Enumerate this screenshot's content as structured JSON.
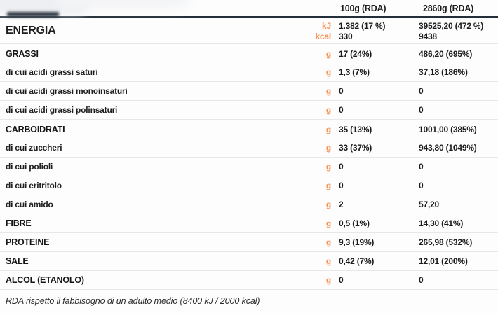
{
  "table": {
    "columns": {
      "per_100g": "100g (RDA)",
      "per_2860g": "2860g (RDA)"
    },
    "energy": {
      "label": "ENERGIA",
      "lines": [
        {
          "unit": "kJ",
          "per_100g": "1.382 (17 %)",
          "per_2860g": "39525,20 (472 %)"
        },
        {
          "unit": "kcal",
          "per_100g": "330",
          "per_2860g": "9438"
        }
      ]
    },
    "rows": [
      {
        "type": "group",
        "label": "GRASSI",
        "unit": "g",
        "per_100g": "17 (24%)",
        "per_2860g": "486,20 (695%)"
      },
      {
        "type": "sub",
        "label": "di cui acidi grassi saturi",
        "unit": "g",
        "per_100g": "1,3 (7%)",
        "per_2860g": "37,18  (186%)"
      },
      {
        "type": "sub",
        "label": "di cui acidi grassi monoinsaturi",
        "unit": "g",
        "per_100g": "0",
        "per_2860g": "0"
      },
      {
        "type": "sub",
        "label": "di cui acidi grassi polinsaturi",
        "unit": "g",
        "per_100g": "0",
        "per_2860g": "0"
      },
      {
        "type": "group",
        "label": "CARBOIDRATI",
        "unit": "g",
        "per_100g": "35 (13%)",
        "per_2860g": "1001,00 (385%)"
      },
      {
        "type": "sub",
        "label": "di cui zuccheri",
        "unit": "g",
        "per_100g": "33 (37%)",
        "per_2860g": "943,80 (1049%)"
      },
      {
        "type": "sub",
        "label": "di cui polioli",
        "unit": "g",
        "per_100g": "0",
        "per_2860g": "0"
      },
      {
        "type": "sub",
        "label": "di cui eritritolo",
        "unit": "g",
        "per_100g": "0",
        "per_2860g": "0"
      },
      {
        "type": "sub",
        "label": "di cui amido",
        "unit": "g",
        "per_100g": "2",
        "per_2860g": "57,20"
      },
      {
        "type": "group",
        "label": "FIBRE",
        "unit": "g",
        "per_100g": "0,5 (1%)",
        "per_2860g": "14,30 (41%)"
      },
      {
        "type": "group",
        "label": "PROTEINE",
        "unit": "g",
        "per_100g": "9,3 (19%)",
        "per_2860g": "265,98 (532%)"
      },
      {
        "type": "group",
        "label": "SALE",
        "unit": "g",
        "per_100g": "0,42 (7%)",
        "per_2860g": "12,01 (200%)"
      },
      {
        "type": "group",
        "label": "ALCOL (ETANOLO)",
        "unit": "g",
        "per_100g": "0",
        "per_2860g": "0"
      }
    ],
    "footnote": "RDA rispetto il fabbisogno di un adulto medio (8400 kJ / 2000 kcal)"
  },
  "colors": {
    "accent_orange": "#f79454",
    "header_rule": "#232e3a",
    "row_separator": "#e8e8e8",
    "text": "#1e1e1e",
    "background": "#fdfdfd"
  }
}
